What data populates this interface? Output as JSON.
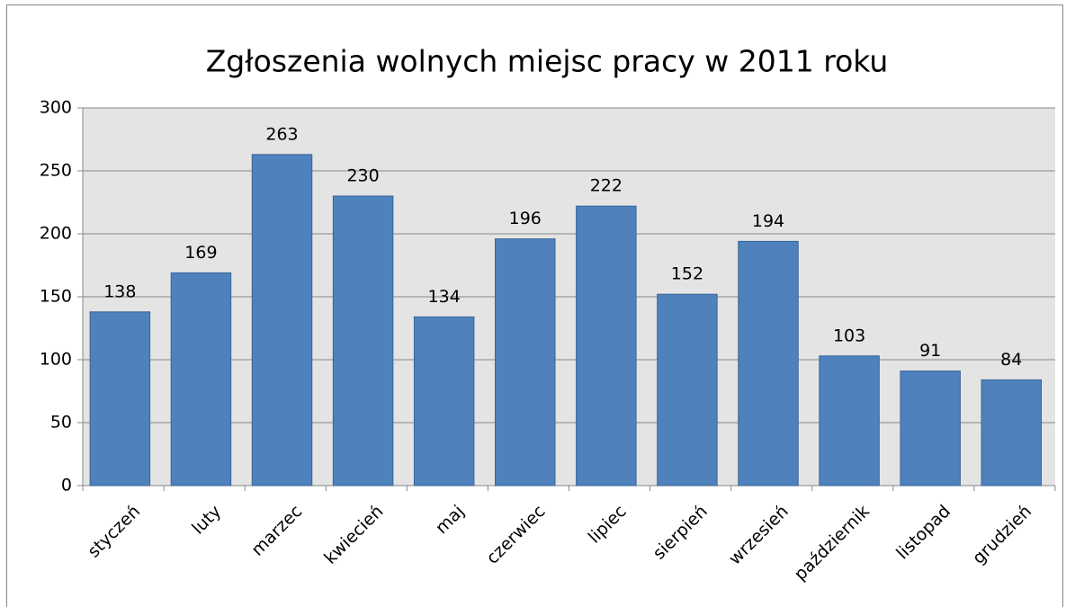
{
  "chart_data": {
    "type": "bar",
    "title": "Zgłoszenia wolnych miejsc pracy w 2011 roku",
    "categories": [
      "styczeń",
      "luty",
      "marzec",
      "kwiecień",
      "maj",
      "czerwiec",
      "lipiec",
      "sierpień",
      "wrzesień",
      "październik",
      "listopad",
      "grudzień"
    ],
    "values": [
      138,
      169,
      263,
      230,
      134,
      196,
      222,
      152,
      194,
      103,
      91,
      84
    ],
    "color": "#4f81bd",
    "ylim": [
      0,
      300
    ],
    "yticks": [
      0,
      50,
      100,
      150,
      200,
      250,
      300
    ],
    "grid": true
  }
}
